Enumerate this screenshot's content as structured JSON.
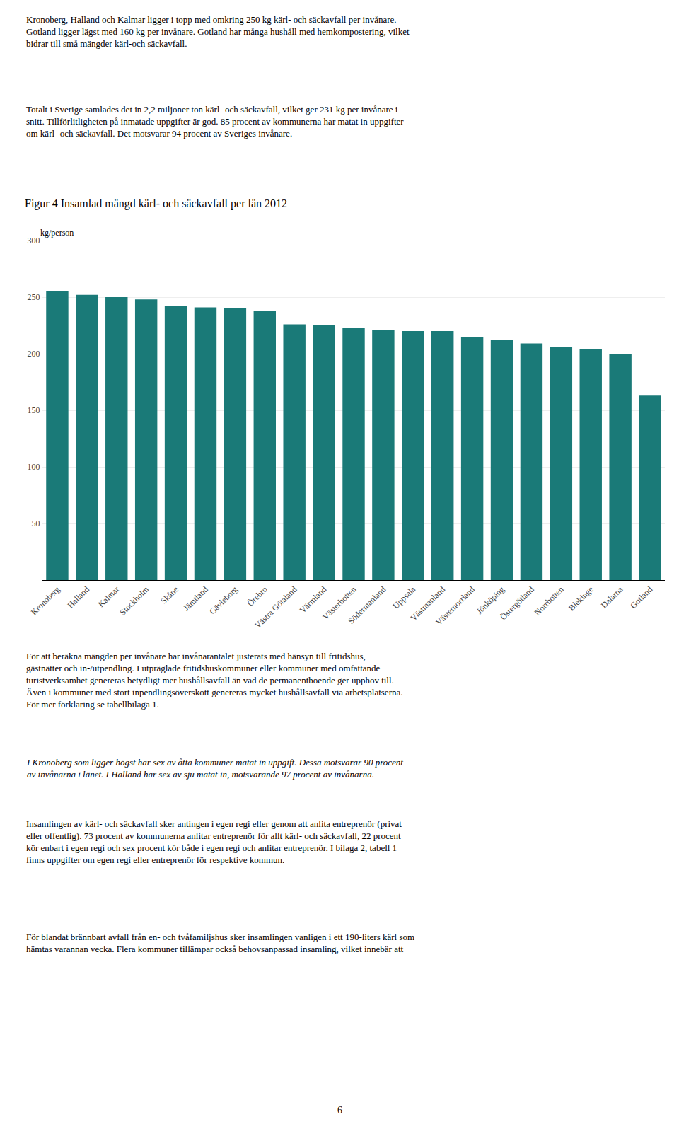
{
  "chart_data": {
    "type": "bar",
    "title": "Figur 4 Insamlad mängd kärl- och säckavfall per län 2012",
    "ylabel": "kg/person",
    "categories": [
      "Kronoberg",
      "Halland",
      "Kalmar",
      "Stockholm",
      "Skåne",
      "Jämtland",
      "Gävleborg",
      "Örebro",
      "Västra Götaland",
      "Värmland",
      "Västerbotten",
      "Södermanland",
      "Uppsala",
      "Västmanland",
      "Västernorrland",
      "Jönköping",
      "Östergötland",
      "Norrbotten",
      "Blekinge",
      "Dalarna",
      "Gotland"
    ],
    "values": [
      255,
      252,
      250,
      248,
      242,
      241,
      240,
      238,
      226,
      225,
      223,
      221,
      220,
      220,
      215,
      212,
      209,
      206,
      204,
      200,
      163
    ],
    "color": "#1a7a78",
    "ylim": [
      0,
      300
    ],
    "yticks": [
      50,
      100,
      150,
      200,
      250,
      300
    ],
    "grid": true,
    "annotations": [
      "Kronoberg, Halland och Kalmar ligger i topp med omkring 250 kg kärl- och säckavfall per invånare.\nGotland ligger lägst med 160 kg per invånare. Gotland har många hushåll med hemkompostering, vilket\nbidrar till små mängder kärl-och säckavfall.",
      "Totalt i Sverige samlades det in 2,2 miljoner ton kärl- och säckavfall, vilket ger 231 kg per invånare i\nsnitt. Tillförlitligheten på inmatade uppgifter är god. 85 procent av kommunerna har matat in uppgifter\nom kärl- och säckavfall. Det motsvarar 94 procent av Sveriges invånare.",
      "För att beräkna mängden per invånare har invånarantalet justerats med hänsyn till fritidshus,\ngästnätter och in-/utpendling. I utpräglade fritidshuskommuner eller kommuner med omfattande\nturistverksamhet genereras betydligt mer hushållsavfall än vad de permanentboende ger upphov till.\nÄven i kommuner med stort inpendlingsöverskott genereras mycket hushållsavfall via arbetsplatserna.\nFör mer förklaring se tabellbilaga 1.",
      "I Kronoberg som ligger högst har sex av åtta kommuner matat in uppgift. Dessa motsvarar 90 procent\nav invånarna i länet. I Halland har sex av sju matat in, motsvarande 97 procent av invånarna.",
      "Insamlingen av kärl- och säckavfall sker antingen i egen regi eller genom att anlita entreprenör (privat\neller offentlig). 73 procent av kommunerna anlitar entreprenör för allt kärl- och säckavfall, 22 procent\nkör enbart i egen regi och sex procent kör både i egen regi och anlitar entreprenör. I bilaga 2, tabell 1\nfinns uppgifter om egen regi eller entreprenör för respektive kommun.",
      "För blandat brännbart avfall från en- och tvåfamiljshus sker insamlingen vanligen i ett 190-liters kärl som\nhämtas varannan vecka. Flera kommuner tillämpar också behovsanpassad insamling, vilket innebär att",
      "6"
    ]
  }
}
